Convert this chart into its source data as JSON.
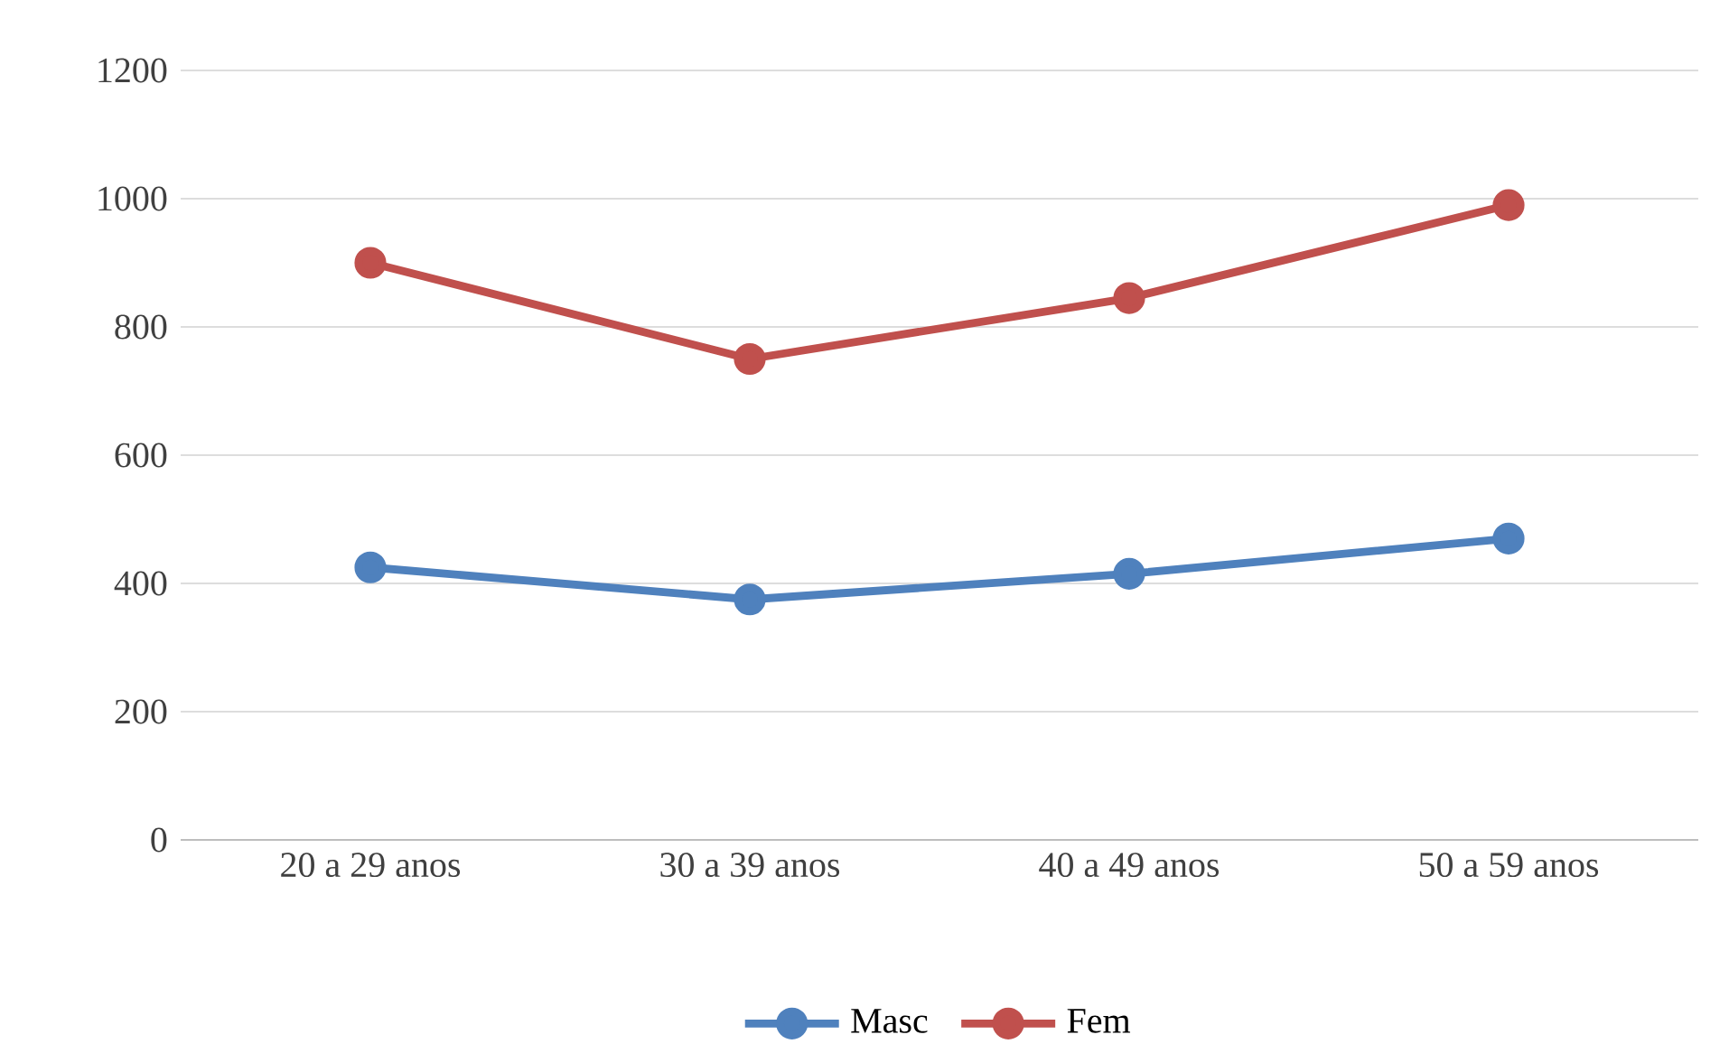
{
  "chart_data": {
    "type": "line",
    "categories": [
      "20 a 29 anos",
      "30 a 39 anos",
      "40 a 49 anos",
      "50 a 59 anos"
    ],
    "series": [
      {
        "name": "Masc",
        "color": "#4f81bd",
        "values": [
          425,
          375,
          415,
          470
        ]
      },
      {
        "name": "Fem",
        "color": "#c0504d",
        "values": [
          900,
          750,
          845,
          990
        ]
      }
    ],
    "ylim": [
      0,
      1200
    ],
    "yticks": [
      0,
      200,
      400,
      600,
      800,
      1000,
      1200
    ],
    "grid": "y",
    "legend": "bottom",
    "marker": "circle",
    "line_style": "solid"
  }
}
